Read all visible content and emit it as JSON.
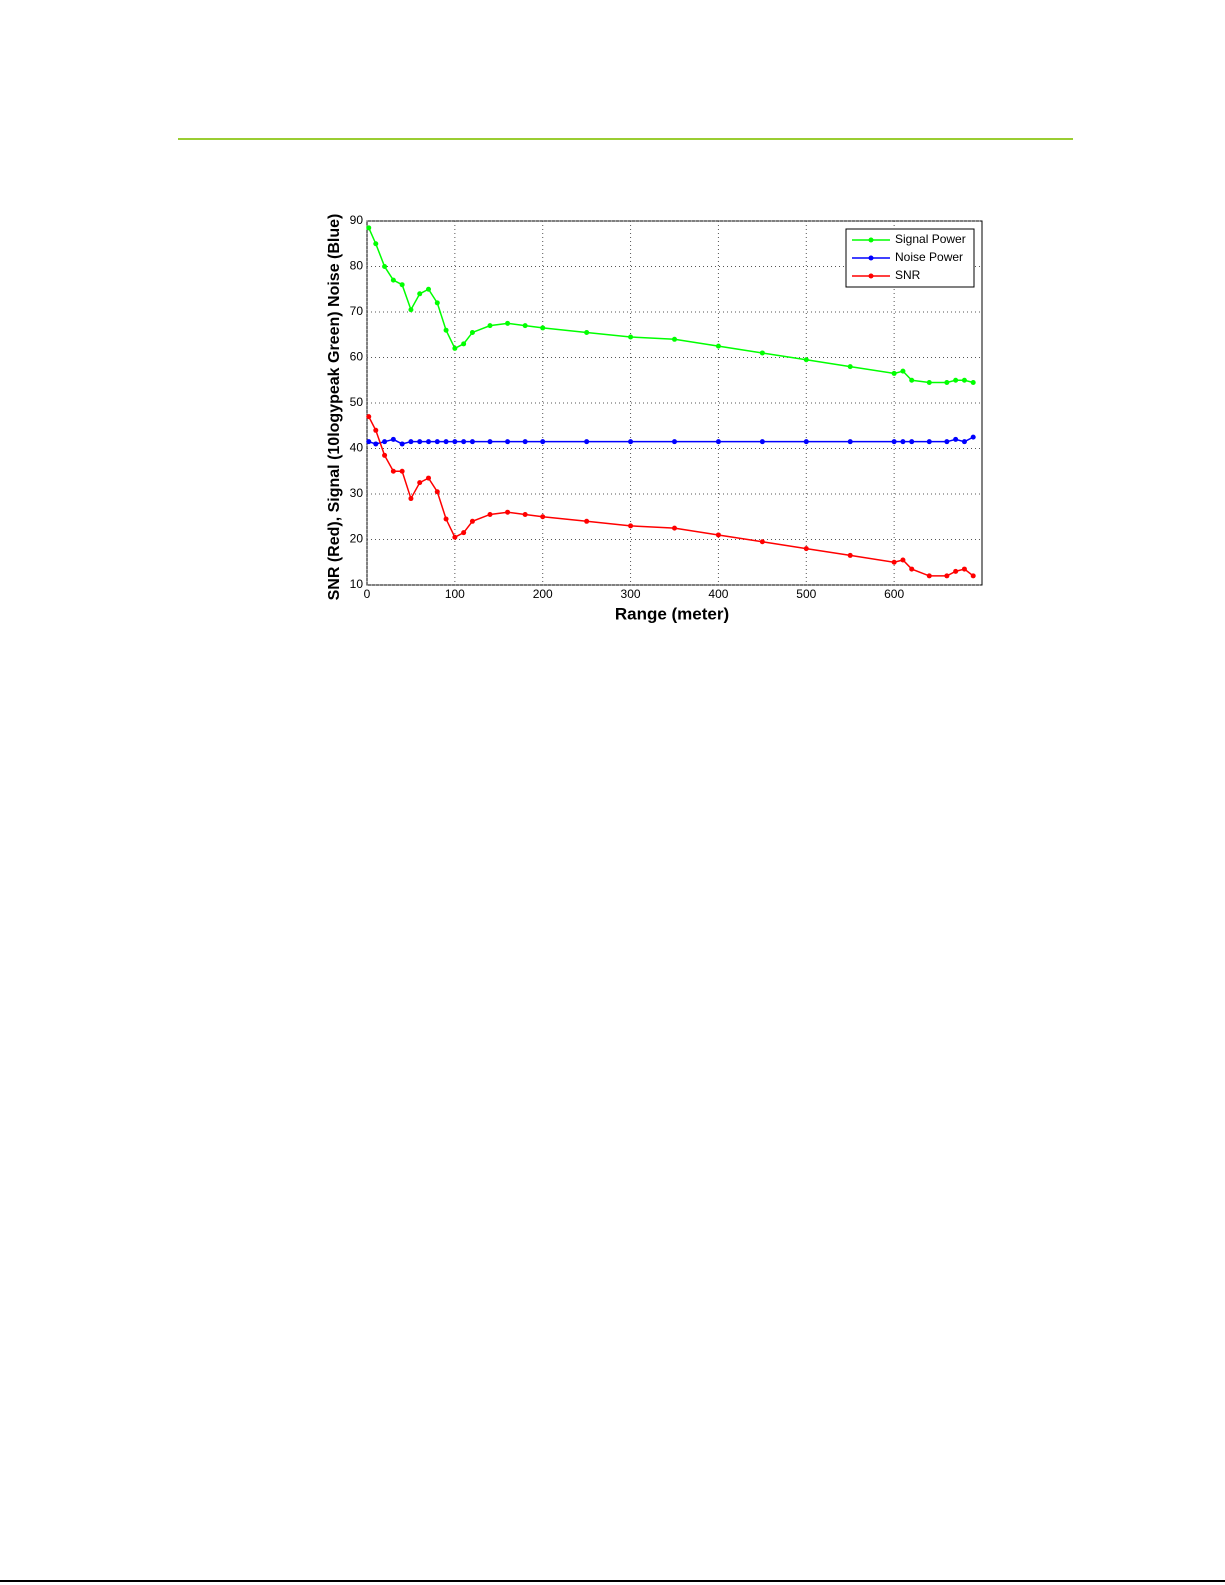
{
  "chart_data": {
    "type": "line",
    "xlabel": "Range (meter)",
    "ylabel": "SNR (Red), Signal  (10logypeak Green) Noise (Blue)",
    "x": [
      2,
      10,
      20,
      30,
      40,
      50,
      60,
      70,
      80,
      90,
      100,
      110,
      120,
      140,
      160,
      180,
      200,
      250,
      300,
      350,
      400,
      450,
      500,
      550,
      600,
      610,
      620,
      640,
      660,
      670,
      680,
      690
    ],
    "series": [
      {
        "name": "Signal Power",
        "color": "#00ff00",
        "values": [
          88.5,
          85,
          80,
          77,
          76,
          70.5,
          74,
          75,
          72,
          66,
          62,
          63,
          65.5,
          67,
          67.5,
          67,
          66.5,
          65.5,
          64.5,
          64,
          62.5,
          61,
          59.5,
          58,
          56.5,
          57,
          55,
          54.5,
          54.5,
          55,
          55,
          54.5
        ]
      },
      {
        "name": "Noise Power",
        "color": "#0000ff",
        "values": [
          41.5,
          41,
          41.5,
          42,
          41,
          41.5,
          41.5,
          41.5,
          41.5,
          41.5,
          41.5,
          41.5,
          41.5,
          41.5,
          41.5,
          41.5,
          41.5,
          41.5,
          41.5,
          41.5,
          41.5,
          41.5,
          41.5,
          41.5,
          41.5,
          41.5,
          41.5,
          41.5,
          41.5,
          42,
          41.5,
          42.5
        ]
      },
      {
        "name": "SNR",
        "color": "#ff0000",
        "values": [
          47,
          44,
          38.5,
          35,
          35,
          29,
          32.5,
          33.5,
          30.5,
          24.5,
          20.5,
          21.5,
          24,
          25.5,
          26,
          25.5,
          25,
          24,
          23,
          22.5,
          21,
          19.5,
          18,
          16.5,
          15,
          15.5,
          13.5,
          12,
          12,
          13,
          13.5,
          12
        ]
      }
    ],
    "xlim": [
      0,
      700
    ],
    "xticks": [
      0,
      100,
      200,
      300,
      400,
      500,
      600
    ],
    "ylim": [
      10,
      90
    ],
    "yticks": [
      10,
      20,
      30,
      40,
      50,
      60,
      70,
      80,
      90
    ],
    "grid": true,
    "legend": "upper right"
  }
}
